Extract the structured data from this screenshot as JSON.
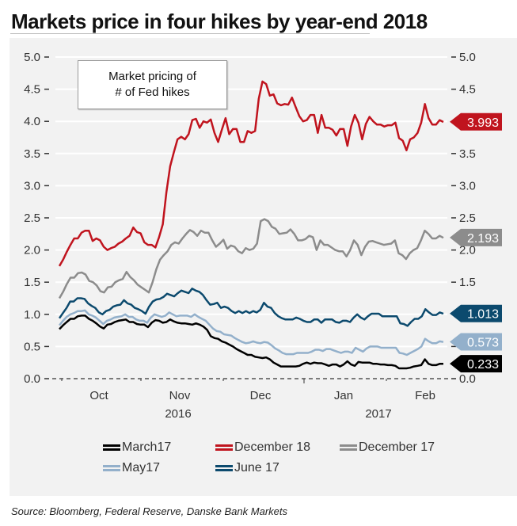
{
  "chart_data": {
    "type": "line",
    "title": "Markets price in four hikes by year-end 2018",
    "annotation": [
      "Market pricing of",
      "# of Fed hikes"
    ],
    "xlabel": "",
    "ylabel": "",
    "ylim": [
      0,
      5
    ],
    "y_ticks": [
      "0.0",
      "0.5",
      "1.0",
      "1.5",
      "2.0",
      "2.5",
      "3.0",
      "3.5",
      "4.0",
      "4.5",
      "5.0"
    ],
    "x_tick_labels": [
      "Oct",
      "Nov",
      "Dec",
      "Jan",
      "Feb"
    ],
    "x_year_labels": [
      "2016",
      "2017"
    ],
    "grid": true,
    "legend_position": "bottom",
    "source": "Source: Bloomberg, Federal Reserve, Danske Bank Markets",
    "series": [
      {
        "name": "December 18",
        "color": "#c0141e",
        "last_value_label": "3.993",
        "values": [
          1.75,
          1.85,
          1.97,
          2.08,
          2.18,
          2.18,
          2.27,
          2.3,
          2.3,
          2.14,
          2.18,
          2.15,
          2.05,
          2.0,
          2.03,
          2.05,
          2.1,
          2.13,
          2.18,
          2.22,
          2.35,
          2.28,
          2.26,
          2.12,
          2.08,
          2.08,
          2.04,
          2.2,
          2.4,
          2.9,
          3.3,
          3.52,
          3.72,
          3.76,
          3.72,
          3.8,
          4.02,
          4.04,
          3.9,
          4.0,
          3.98,
          4.03,
          3.82,
          3.68,
          3.87,
          4.05,
          3.8,
          3.88,
          3.88,
          3.68,
          3.68,
          3.85,
          3.82,
          3.85,
          4.35,
          4.62,
          4.58,
          4.4,
          4.42,
          4.28,
          4.25,
          4.27,
          4.26,
          4.37,
          4.22,
          4.08,
          4.0,
          4.02,
          4.1,
          4.1,
          3.82,
          4.1,
          3.9,
          3.9,
          3.87,
          3.78,
          3.88,
          3.88,
          3.62,
          3.92,
          4.1,
          3.98,
          3.72,
          3.96,
          4.07,
          4.0,
          3.95,
          3.95,
          3.92,
          3.94,
          3.94,
          3.98,
          3.74,
          3.7,
          3.55,
          3.72,
          3.75,
          3.82,
          3.98,
          4.27,
          4.05,
          3.95,
          3.95,
          4.02,
          3.99
        ],
        "value_count_note": ""
      },
      {
        "name": "December 17",
        "color": "#8c8c8c",
        "last_value_label": "2.193",
        "values": [
          1.25,
          1.35,
          1.47,
          1.57,
          1.57,
          1.64,
          1.65,
          1.62,
          1.52,
          1.5,
          1.45,
          1.36,
          1.34,
          1.42,
          1.43,
          1.5,
          1.53,
          1.55,
          1.66,
          1.58,
          1.53,
          1.46,
          1.42,
          1.38,
          1.34,
          1.5,
          1.7,
          1.85,
          1.92,
          1.98,
          2.08,
          2.12,
          2.1,
          2.18,
          2.25,
          2.31,
          2.28,
          2.22,
          2.3,
          2.27,
          2.27,
          2.15,
          2.05,
          2.1,
          2.16,
          2.02,
          2.07,
          2.05,
          1.98,
          1.95,
          2.03,
          2.0,
          2.02,
          2.1,
          2.45,
          2.48,
          2.45,
          2.36,
          2.33,
          2.25,
          2.26,
          2.27,
          2.32,
          2.25,
          2.15,
          2.15,
          2.17,
          2.22,
          2.2,
          2.0,
          2.15,
          2.08,
          2.08,
          2.04,
          2.0,
          1.98,
          1.98,
          1.9,
          2.0,
          2.15,
          2.08,
          1.92,
          2.05,
          2.13,
          2.14,
          2.12,
          2.1,
          2.08,
          2.09,
          2.1,
          2.15,
          1.95,
          1.92,
          1.86,
          1.95,
          2.0,
          2.03,
          2.15,
          2.3,
          2.25,
          2.18,
          2.18,
          2.22,
          2.19
        ]
      },
      {
        "name": "June 17",
        "color": "#0c4a6e",
        "last_value_label": "1.013",
        "values": [
          0.94,
          1.02,
          1.1,
          1.2,
          1.2,
          1.25,
          1.25,
          1.24,
          1.17,
          1.13,
          1.1,
          1.03,
          1.0,
          1.05,
          1.07,
          1.12,
          1.14,
          1.15,
          1.22,
          1.17,
          1.15,
          1.1,
          1.08,
          1.05,
          1.01,
          1.12,
          1.2,
          1.23,
          1.24,
          1.27,
          1.32,
          1.3,
          1.28,
          1.33,
          1.37,
          1.35,
          1.33,
          1.4,
          1.37,
          1.35,
          1.3,
          1.22,
          1.15,
          1.16,
          1.18,
          1.1,
          1.12,
          1.1,
          1.05,
          1.02,
          1.05,
          1.02,
          1.05,
          1.02,
          1.05,
          1.03,
          1.07,
          1.18,
          1.12,
          1.1,
          1.02,
          0.97,
          0.94,
          0.92,
          0.92,
          0.92,
          0.95,
          0.93,
          0.9,
          0.88,
          0.88,
          0.92,
          0.92,
          0.87,
          0.92,
          0.92,
          0.92,
          0.88,
          0.87,
          0.9,
          0.9,
          0.88,
          0.95,
          1.0,
          0.95,
          0.92,
          0.97,
          1.01,
          1.01,
          1.01,
          0.97,
          0.97,
          0.97,
          0.97,
          0.97,
          0.86,
          0.85,
          0.82,
          0.88,
          0.93,
          0.93,
          0.97,
          1.08,
          1.03,
          0.99,
          0.99,
          1.03,
          1.01
        ]
      },
      {
        "name": "May17",
        "color": "#93b0cb",
        "last_value_label": "0.573",
        "values": [
          0.83,
          0.9,
          0.96,
          1.0,
          1.02,
          1.05,
          1.05,
          1.06,
          1.0,
          0.98,
          0.95,
          0.9,
          0.85,
          0.9,
          0.92,
          0.95,
          0.96,
          0.97,
          1.0,
          0.96,
          0.96,
          0.92,
          0.9,
          0.9,
          0.87,
          0.95,
          1.0,
          0.98,
          0.96,
          0.98,
          1.03,
          1.0,
          0.97,
          0.98,
          0.98,
          0.98,
          0.96,
          1.0,
          0.96,
          0.93,
          0.9,
          0.84,
          0.78,
          0.74,
          0.73,
          0.69,
          0.68,
          0.67,
          0.63,
          0.6,
          0.57,
          0.55,
          0.56,
          0.58,
          0.56,
          0.55,
          0.57,
          0.56,
          0.52,
          0.47,
          0.44,
          0.4,
          0.38,
          0.38,
          0.38,
          0.4,
          0.4,
          0.4,
          0.4,
          0.42,
          0.45,
          0.45,
          0.43,
          0.46,
          0.46,
          0.44,
          0.42,
          0.4,
          0.42,
          0.42,
          0.4,
          0.48,
          0.45,
          0.42,
          0.47,
          0.5,
          0.5,
          0.5,
          0.48,
          0.48,
          0.48,
          0.48,
          0.48,
          0.4,
          0.39,
          0.37,
          0.4,
          0.43,
          0.46,
          0.5,
          0.62,
          0.58,
          0.55,
          0.55,
          0.58,
          0.57
        ]
      },
      {
        "name": "March17",
        "color": "#000000",
        "last_value_label": "0.233",
        "values": [
          0.77,
          0.83,
          0.88,
          0.93,
          0.93,
          0.97,
          0.98,
          0.98,
          0.93,
          0.9,
          0.86,
          0.81,
          0.78,
          0.84,
          0.85,
          0.88,
          0.9,
          0.91,
          0.92,
          0.88,
          0.88,
          0.85,
          0.84,
          0.84,
          0.8,
          0.87,
          0.91,
          0.9,
          0.87,
          0.88,
          0.92,
          0.89,
          0.87,
          0.86,
          0.86,
          0.85,
          0.84,
          0.86,
          0.84,
          0.81,
          0.76,
          0.66,
          0.63,
          0.62,
          0.58,
          0.56,
          0.53,
          0.5,
          0.46,
          0.43,
          0.4,
          0.37,
          0.37,
          0.34,
          0.33,
          0.32,
          0.33,
          0.3,
          0.25,
          0.22,
          0.19,
          0.19,
          0.19,
          0.19,
          0.19,
          0.2,
          0.23,
          0.25,
          0.23,
          0.25,
          0.24,
          0.24,
          0.22,
          0.2,
          0.22,
          0.22,
          0.19,
          0.22,
          0.27,
          0.22,
          0.2,
          0.26,
          0.25,
          0.25,
          0.25,
          0.23,
          0.23,
          0.22,
          0.22,
          0.21,
          0.21,
          0.2,
          0.16,
          0.16,
          0.16,
          0.17,
          0.19,
          0.2,
          0.21,
          0.3,
          0.23,
          0.21,
          0.21,
          0.23,
          0.23
        ]
      }
    ]
  },
  "legend": {
    "row1": [
      {
        "label": "March17",
        "color": "#000000"
      },
      {
        "label": "December 18",
        "color": "#c0141e"
      },
      {
        "label": "December 17",
        "color": "#8c8c8c"
      }
    ],
    "row2": [
      {
        "label": "May17",
        "color": "#93b0cb"
      },
      {
        "label": "June 17",
        "color": "#0c4a6e"
      }
    ]
  }
}
